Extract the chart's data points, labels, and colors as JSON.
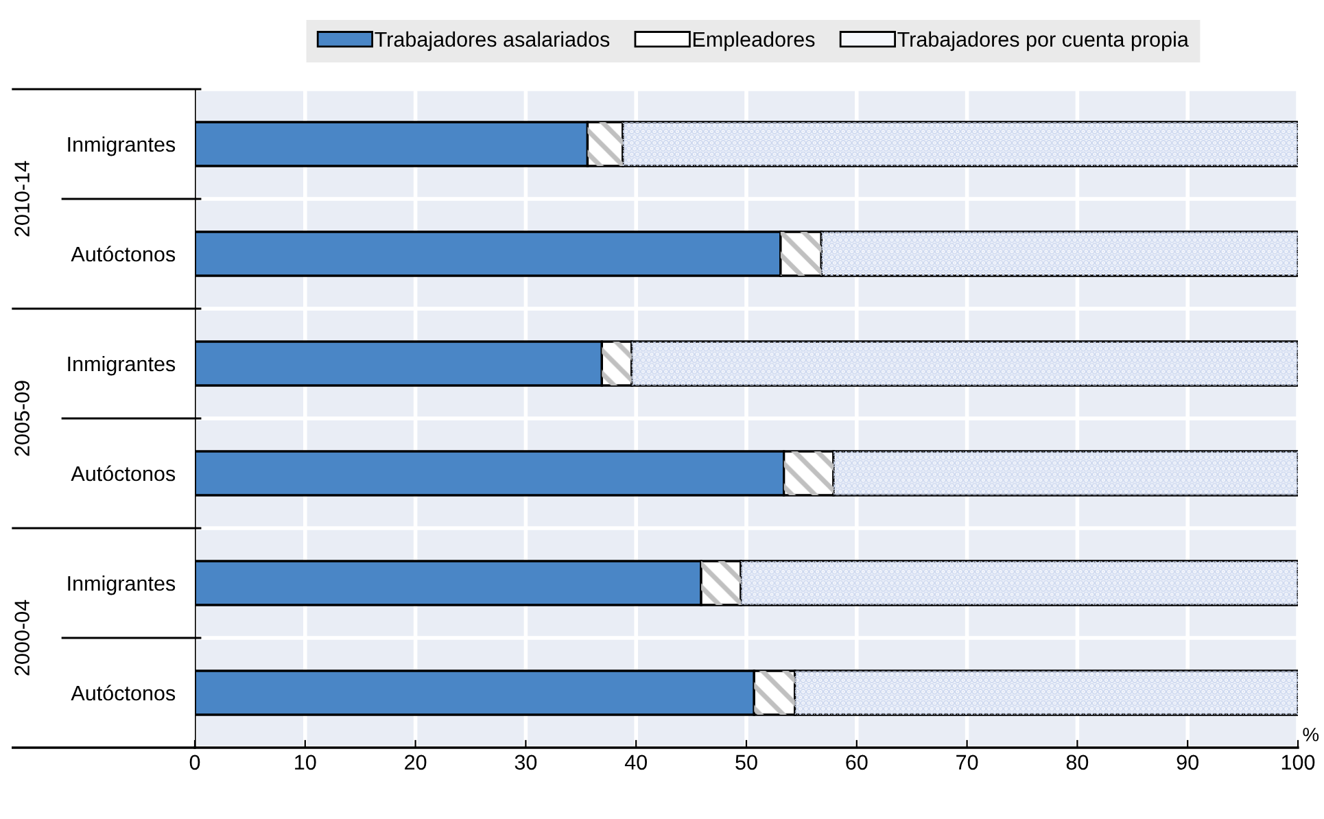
{
  "chart_data": {
    "type": "bar",
    "orientation": "horizontal",
    "stacked": true,
    "xlabel": "%",
    "categories": [
      "Inmigrantes",
      "Autóctonos",
      "Inmigrantes",
      "Autóctonos",
      "Inmigrantes",
      "Autóctonos"
    ],
    "annotations": [
      "2010-14",
      "2005-09",
      "2000-04"
    ],
    "series": [
      {
        "name": "Trabajadores asalariados",
        "color": "#4a86c6",
        "values": [
          35.6,
          53.1,
          36.9,
          53.4,
          45.9,
          50.7
        ]
      },
      {
        "name": "Empleadores",
        "color": "#ffffff",
        "values": [
          3.2,
          3.7,
          2.7,
          4.5,
          3.6,
          3.7
        ]
      },
      {
        "name": "Trabajadores por cuenta propia",
        "color": "#f5f7fc",
        "values": [
          61.2,
          43.2,
          60.4,
          42.1,
          50.5,
          45.6
        ]
      }
    ],
    "xlim": [
      0,
      100
    ],
    "xticks": [
      0,
      10,
      20,
      30,
      40,
      50,
      60,
      70,
      80,
      90,
      100
    ],
    "grid": true,
    "legend": "top"
  }
}
